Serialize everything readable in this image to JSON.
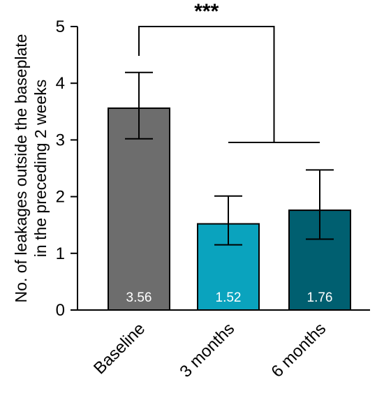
{
  "chart_data": {
    "type": "bar",
    "title": "",
    "xlabel": "",
    "ylabel_lines": [
      "No. of leakages outside the baseplate",
      "in the preceding 2 weeks"
    ],
    "ylim": [
      0,
      5
    ],
    "yticks": [
      0,
      1,
      2,
      3,
      4,
      5
    ],
    "categories": [
      "Baseline",
      "3 months",
      "6 months"
    ],
    "values": [
      3.56,
      1.52,
      1.76
    ],
    "value_labels": [
      "3.56",
      "1.52",
      "1.76"
    ],
    "error_low": [
      3.02,
      1.15,
      1.25
    ],
    "error_high": [
      4.19,
      2.01,
      2.47
    ],
    "colors": [
      "#6d6d6d",
      "#0aa3be",
      "#005f70"
    ],
    "significance": {
      "label": "***",
      "from": "Baseline",
      "to": [
        "3 months",
        "6 months"
      ]
    },
    "grid": false,
    "legend": "none"
  }
}
